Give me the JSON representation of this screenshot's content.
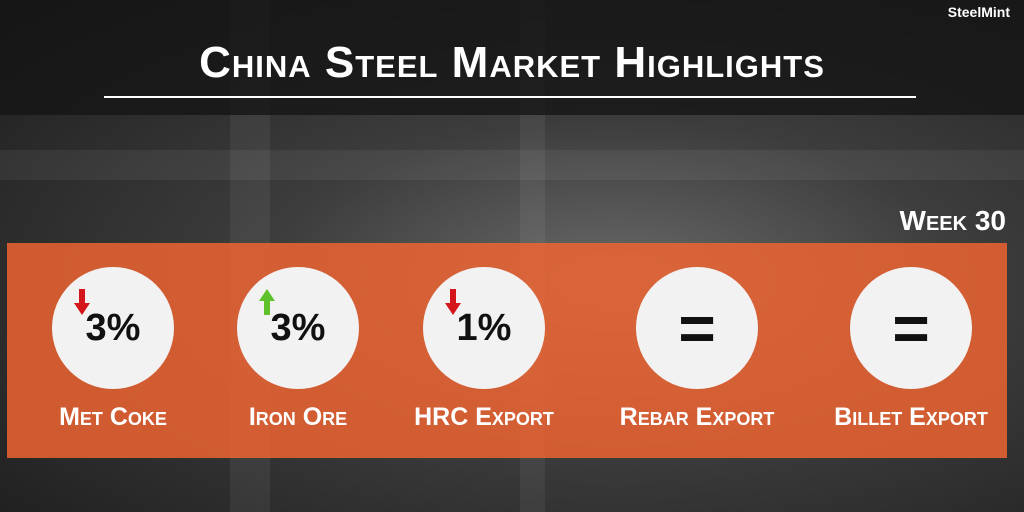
{
  "header": {
    "title": "China Steel Market Highlights",
    "brand": "SteelMint",
    "week": "Week 30"
  },
  "items": [
    {
      "value": "3%",
      "label": "Met Coke"
    },
    {
      "value": "3%",
      "label": "Iron Ore"
    },
    {
      "value": "1%",
      "label": "HRC Export"
    },
    {
      "value": "=",
      "label": "Rebar Export"
    },
    {
      "value": "=",
      "label": "Billet Export"
    }
  ]
}
